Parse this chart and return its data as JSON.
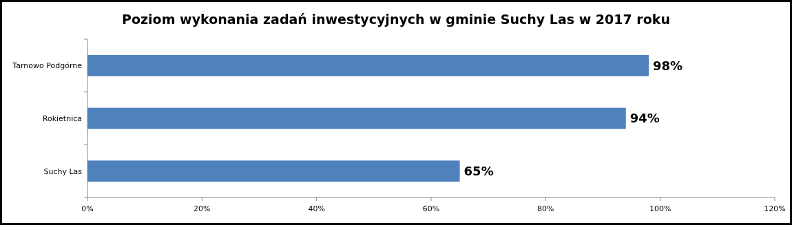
{
  "chart_data": {
    "type": "bar",
    "orientation": "horizontal",
    "title": "Poziom wykonania zadań inwestycyjnych w gminie Suchy Las w 2017 roku",
    "categories": [
      "Tarnowo Podgórne",
      "Rokietnica",
      "Suchy Las"
    ],
    "values": [
      98,
      94,
      65
    ],
    "color": "#4f81bd",
    "value_labels": [
      "98%",
      "94%",
      "65%"
    ],
    "xlim": [
      0,
      120
    ],
    "xticks": [
      {
        "value": 0,
        "label": "0%"
      },
      {
        "value": 20,
        "label": "20%"
      },
      {
        "value": 40,
        "label": "40%"
      },
      {
        "value": 60,
        "label": "60%"
      },
      {
        "value": 80,
        "label": "80%"
      },
      {
        "value": 100,
        "label": "100%"
      },
      {
        "value": 120,
        "label": "120%"
      }
    ],
    "grid": false
  }
}
